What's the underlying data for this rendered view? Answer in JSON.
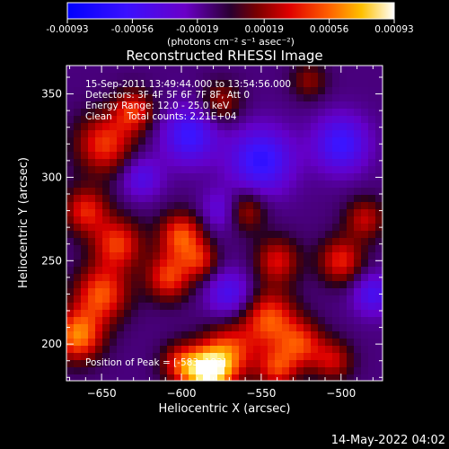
{
  "chart_data": {
    "type": "heatmap",
    "title": "Reconstructed RHESSI Image",
    "xlabel": "Heliocentric X (arcsec)",
    "ylabel": "Heliocentric Y (arcsec)",
    "xlim": [
      -672,
      -474
    ],
    "ylim": [
      178,
      367
    ],
    "x_ticks": [
      -650,
      -600,
      -550,
      -500
    ],
    "y_ticks": [
      200,
      250,
      300,
      350
    ],
    "colorbar": {
      "min": -0.00093,
      "max": 0.00093,
      "tick_values": [
        -0.00093,
        -0.00056,
        -0.00019,
        0.00019,
        0.00056,
        0.00093
      ],
      "tick_labels": [
        "-0.00093",
        "-0.00056",
        "-0.00019",
        "0.00019",
        "0.00056",
        "0.00093"
      ],
      "units": "(photons cm⁻² s⁻¹ asec⁻²)",
      "colormap": "blue-purple-red-orange-yellow-white"
    },
    "annotations": [
      "15-Sep-2011 13:49:44.000 to 13:54:56.000",
      "Detectors: 3F 4F 5F 6F 7F 8F, Att 0",
      "Energy Range: 12.0 - 25.0 keV",
      "Clean     Total counts: 2.21E+04"
    ],
    "peak_label": "Position of Peak = [-583, 183]",
    "blobs": [
      {
        "x": -583,
        "y": 183,
        "amp": 0.00093,
        "sigma": 10
      },
      {
        "x": -570,
        "y": 195,
        "amp": 0.00055,
        "sigma": 12
      },
      {
        "x": -600,
        "y": 188,
        "amp": 0.0005,
        "sigma": 9
      },
      {
        "x": -665,
        "y": 205,
        "amp": 0.0007,
        "sigma": 11
      },
      {
        "x": -650,
        "y": 230,
        "amp": 0.0006,
        "sigma": 12
      },
      {
        "x": -640,
        "y": 260,
        "amp": 0.00055,
        "sigma": 11
      },
      {
        "x": -660,
        "y": 280,
        "amp": 0.0005,
        "sigma": 10
      },
      {
        "x": -648,
        "y": 320,
        "amp": 0.00055,
        "sigma": 13
      },
      {
        "x": -630,
        "y": 340,
        "amp": 0.0005,
        "sigma": 9
      },
      {
        "x": -600,
        "y": 265,
        "amp": 0.0006,
        "sigma": 10
      },
      {
        "x": -608,
        "y": 240,
        "amp": 0.00055,
        "sigma": 10
      },
      {
        "x": -588,
        "y": 250,
        "amp": 0.0004,
        "sigma": 8
      },
      {
        "x": -560,
        "y": 280,
        "amp": 0.0004,
        "sigma": 9
      },
      {
        "x": -540,
        "y": 250,
        "amp": 0.00045,
        "sigma": 10
      },
      {
        "x": -545,
        "y": 215,
        "amp": 0.0006,
        "sigma": 12
      },
      {
        "x": -525,
        "y": 200,
        "amp": 0.0005,
        "sigma": 10
      },
      {
        "x": -500,
        "y": 250,
        "amp": 0.0005,
        "sigma": 10
      },
      {
        "x": -485,
        "y": 275,
        "amp": 0.0004,
        "sigma": 9
      },
      {
        "x": -505,
        "y": 190,
        "amp": 0.0004,
        "sigma": 9
      },
      {
        "x": -540,
        "y": 185,
        "amp": 0.0005,
        "sigma": 9
      },
      {
        "x": -575,
        "y": 345,
        "amp": 0.00035,
        "sigma": 9
      },
      {
        "x": -520,
        "y": 358,
        "amp": 0.0003,
        "sigma": 8
      },
      {
        "x": -595,
        "y": 325,
        "amp": -0.0005,
        "sigma": 12
      },
      {
        "x": -550,
        "y": 310,
        "amp": -0.00055,
        "sigma": 14
      },
      {
        "x": -500,
        "y": 320,
        "amp": -0.0005,
        "sigma": 12
      },
      {
        "x": -480,
        "y": 230,
        "amp": -0.0004,
        "sigma": 9
      },
      {
        "x": -570,
        "y": 230,
        "amp": -0.0004,
        "sigma": 10
      },
      {
        "x": -625,
        "y": 300,
        "amp": -0.00035,
        "sigma": 9
      },
      {
        "x": -575,
        "y": 280,
        "amp": -0.0003,
        "sigma": 9
      }
    ]
  },
  "footer": {
    "timestamp": "14-May-2022 04:02"
  }
}
